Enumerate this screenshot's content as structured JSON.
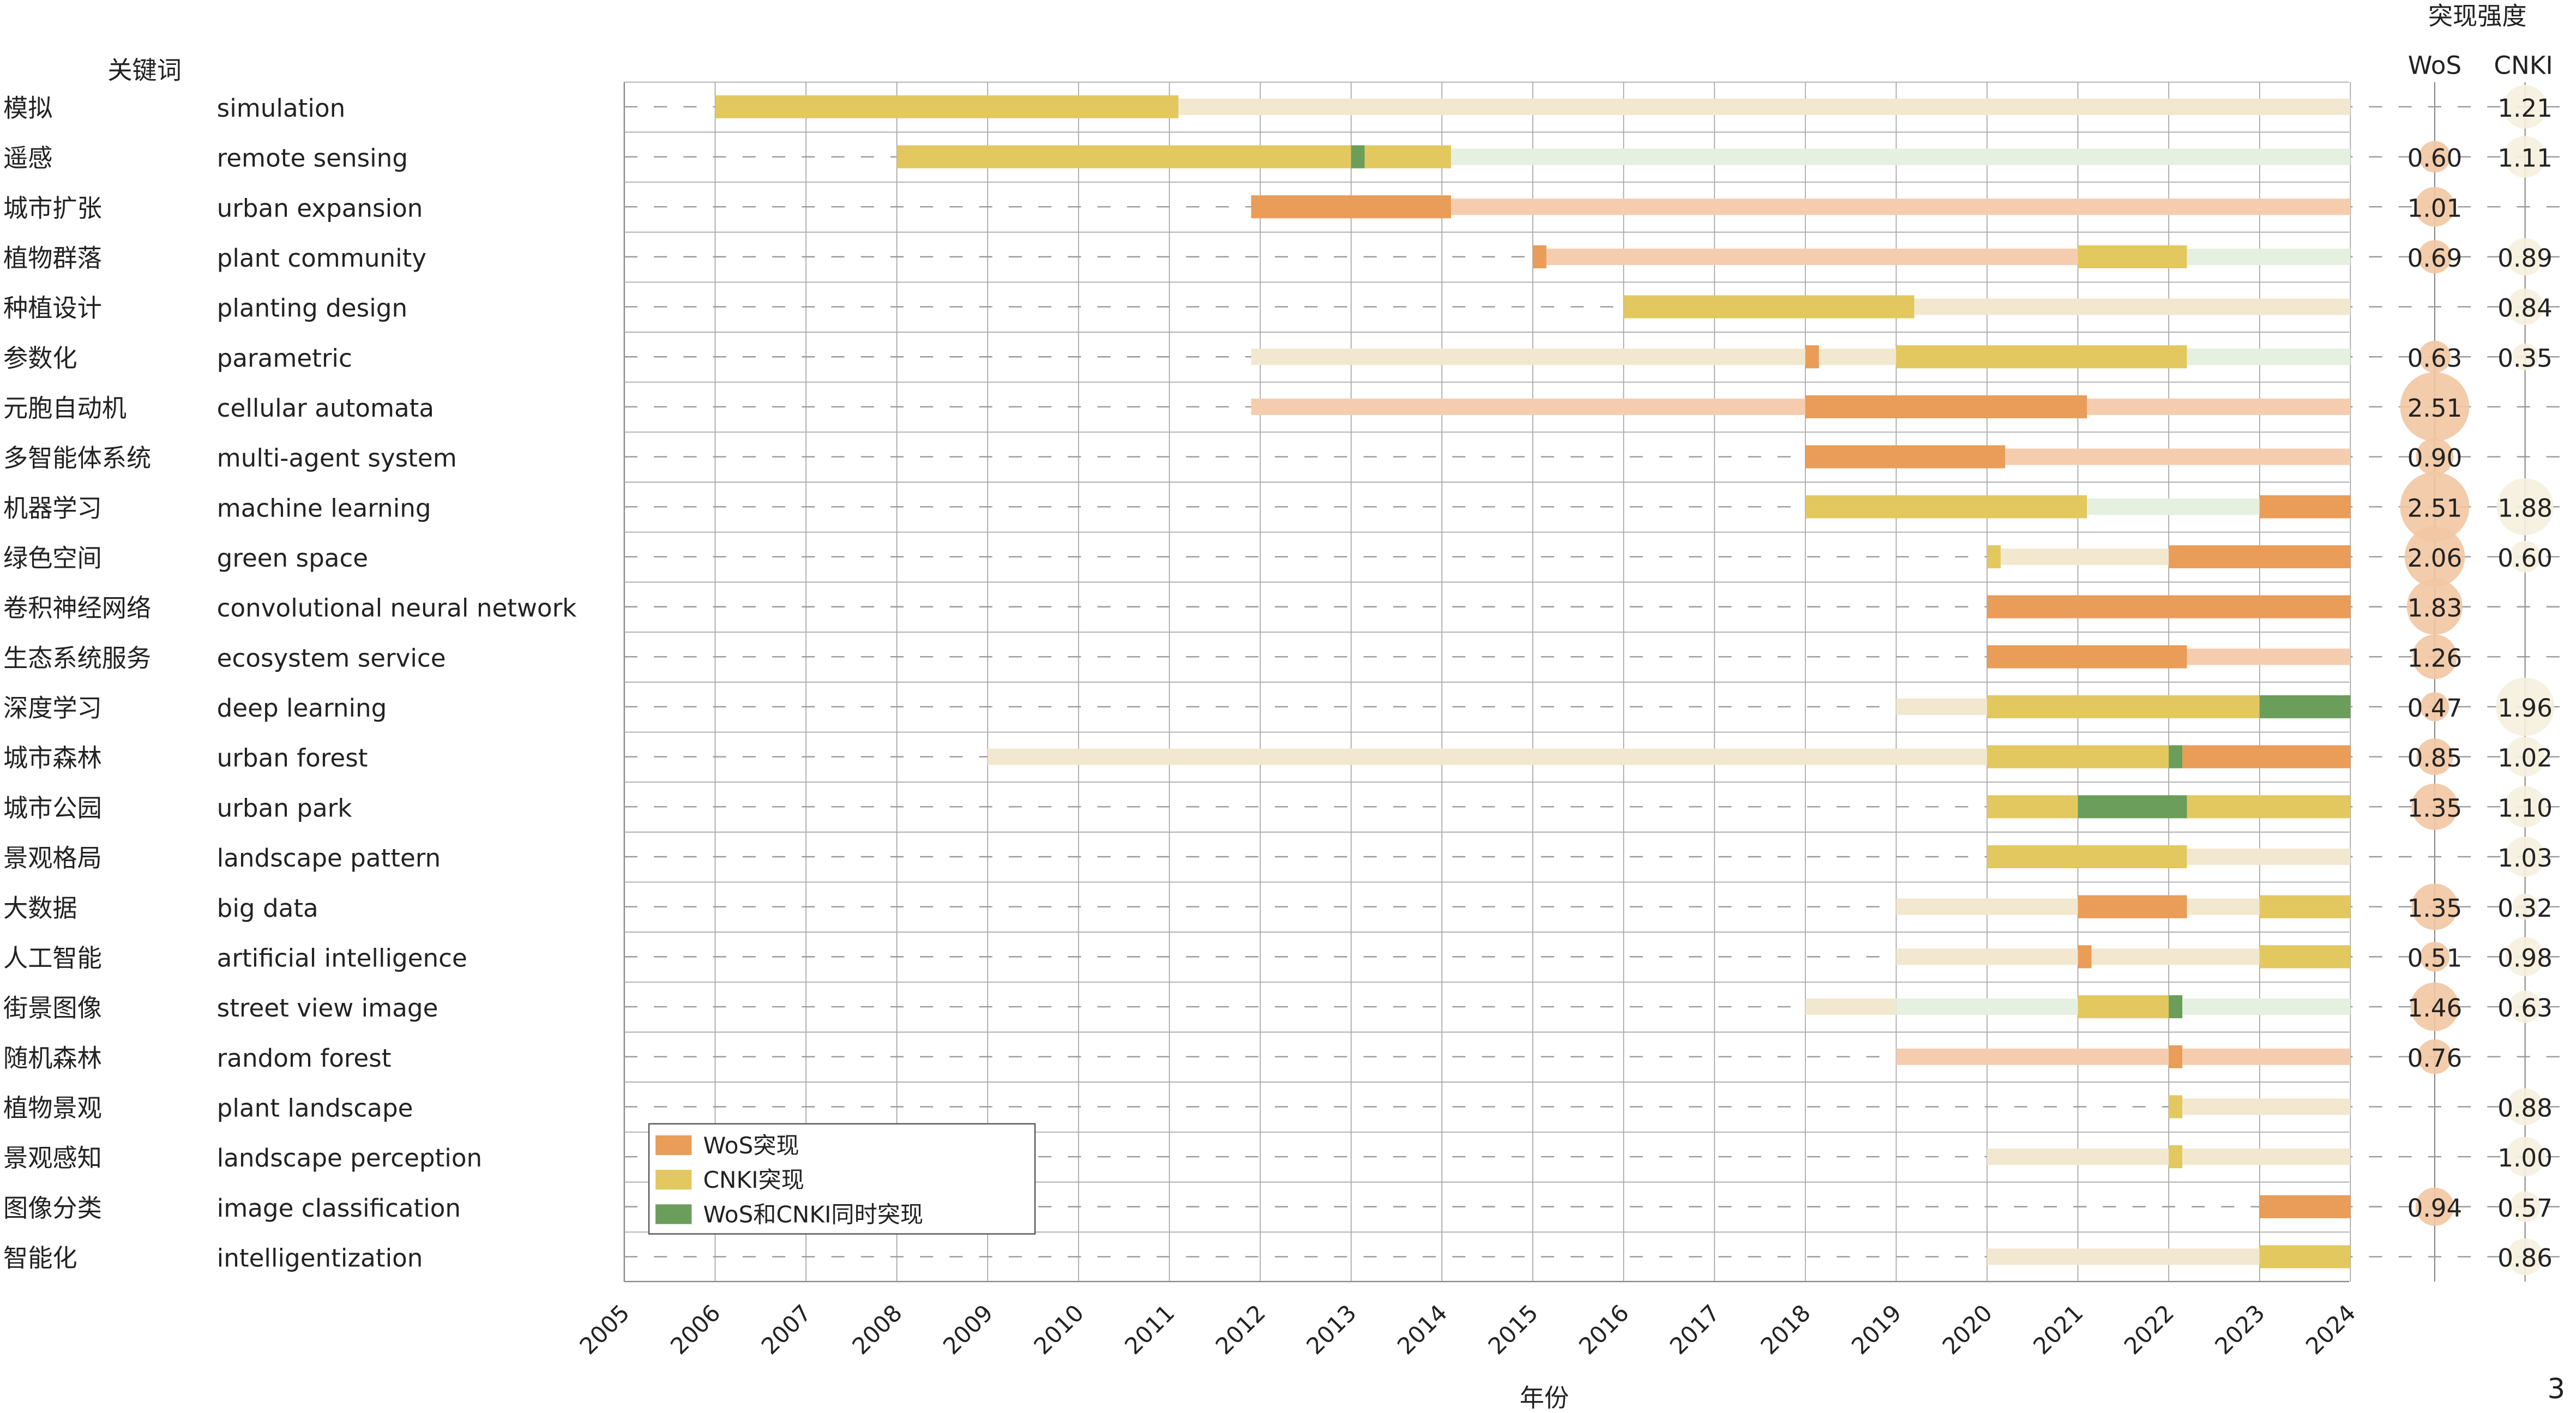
{
  "chart_data": {
    "type": "timeline-bar",
    "header_keyword": "关键词",
    "header_strength": "突现强度",
    "col_wos": "WoS",
    "col_cnki": "CNKI",
    "xlabel": "年份",
    "years": [
      2005,
      2006,
      2007,
      2008,
      2009,
      2010,
      2011,
      2012,
      2013,
      2014,
      2015,
      2016,
      2017,
      2018,
      2019,
      2020,
      2021,
      2022,
      2023,
      2024
    ],
    "xlim": [
      2005,
      2024
    ],
    "page_number": "3",
    "legend": [
      {
        "key": "wos",
        "label": "WoS突现"
      },
      {
        "key": "cnki",
        "label": "CNKI突现"
      },
      {
        "key": "both",
        "label": "WoS和CNKI同时突现"
      }
    ],
    "colors": {
      "wos": "#E99D58",
      "cnki": "#E3C85F",
      "both": "#6A9E5A",
      "wos_light": "#F5CDAE",
      "cnki_light": "#F2E8D0",
      "both_light": "#E5F0E0",
      "wos_bubble": "#F2C7A2",
      "cnki_bubble": "#F6F0DE"
    },
    "rows": [
      {
        "zh": "模拟",
        "en": "simulation",
        "wos": null,
        "cnki": "1.21",
        "seg": [
          [
            2006,
            2011.1,
            "cnki"
          ],
          [
            2011.1,
            2024,
            "cnki_light"
          ]
        ]
      },
      {
        "zh": "遥感",
        "en": "remote sensing",
        "wos": "0.60",
        "cnki": "1.11",
        "seg": [
          [
            2008,
            2013,
            "cnki"
          ],
          [
            2013,
            2013.15,
            "both"
          ],
          [
            2013.15,
            2014.1,
            "cnki"
          ],
          [
            2014.1,
            2024,
            "both_light"
          ]
        ]
      },
      {
        "zh": "城市扩张",
        "en": "urban expansion",
        "wos": "1.01",
        "cnki": null,
        "seg": [
          [
            2011.9,
            2014.1,
            "wos"
          ],
          [
            2014.1,
            2024,
            "wos_light"
          ]
        ]
      },
      {
        "zh": "植物群落",
        "en": "plant community",
        "wos": "0.69",
        "cnki": "0.89",
        "seg": [
          [
            2015,
            2015.15,
            "wos"
          ],
          [
            2015.15,
            2021,
            "wos_light"
          ],
          [
            2021,
            2022.2,
            "cnki"
          ],
          [
            2022.2,
            2024,
            "both_light"
          ]
        ]
      },
      {
        "zh": "种植设计",
        "en": "planting design",
        "wos": null,
        "cnki": "0.84",
        "seg": [
          [
            2016,
            2019.2,
            "cnki"
          ],
          [
            2019.2,
            2024,
            "cnki_light"
          ]
        ]
      },
      {
        "zh": "参数化",
        "en": "parametric",
        "wos": "0.63",
        "cnki": "0.35",
        "seg": [
          [
            2011.9,
            2018,
            "cnki_light"
          ],
          [
            2018,
            2018.15,
            "wos"
          ],
          [
            2018.15,
            2019,
            "cnki_light"
          ],
          [
            2019,
            2022.2,
            "cnki"
          ],
          [
            2022.2,
            2024,
            "both_light"
          ]
        ]
      },
      {
        "zh": "元胞自动机",
        "en": "cellular automata",
        "wos": "2.51",
        "cnki": null,
        "seg": [
          [
            2011.9,
            2018,
            "wos_light"
          ],
          [
            2018,
            2021.1,
            "wos"
          ],
          [
            2021.1,
            2024,
            "wos_light"
          ]
        ]
      },
      {
        "zh": "多智能体系统",
        "en": "multi-agent system",
        "wos": "0.90",
        "cnki": null,
        "seg": [
          [
            2018,
            2020.2,
            "wos"
          ],
          [
            2020.2,
            2024,
            "wos_light"
          ]
        ]
      },
      {
        "zh": "机器学习",
        "en": "machine learning",
        "wos": "2.51",
        "cnki": "1.88",
        "seg": [
          [
            2018,
            2021.1,
            "cnki"
          ],
          [
            2021.1,
            2023,
            "both_light"
          ],
          [
            2023,
            2024,
            "wos"
          ]
        ]
      },
      {
        "zh": "绿色空间",
        "en": "green space",
        "wos": "2.06",
        "cnki": "0.60",
        "seg": [
          [
            2020,
            2020.15,
            "cnki"
          ],
          [
            2020.15,
            2022,
            "cnki_light"
          ],
          [
            2022,
            2024,
            "wos"
          ]
        ]
      },
      {
        "zh": "卷积神经网络",
        "en": "convolutional neural network",
        "wos": "1.83",
        "cnki": null,
        "seg": [
          [
            2020,
            2024,
            "wos"
          ]
        ]
      },
      {
        "zh": "生态系统服务",
        "en": "ecosystem service",
        "wos": "1.26",
        "cnki": null,
        "seg": [
          [
            2020,
            2022.2,
            "wos"
          ],
          [
            2022.2,
            2024,
            "wos_light"
          ]
        ]
      },
      {
        "zh": "深度学习",
        "en": "deep learning",
        "wos": "0.47",
        "cnki": "1.96",
        "seg": [
          [
            2019,
            2020,
            "cnki_light"
          ],
          [
            2020,
            2023,
            "cnki"
          ],
          [
            2023,
            2024,
            "both"
          ]
        ]
      },
      {
        "zh": "城市森林",
        "en": "urban forest",
        "wos": "0.85",
        "cnki": "1.02",
        "seg": [
          [
            2009,
            2020,
            "cnki_light"
          ],
          [
            2020,
            2022,
            "cnki"
          ],
          [
            2022,
            2022.15,
            "both"
          ],
          [
            2022.15,
            2024,
            "wos"
          ]
        ]
      },
      {
        "zh": "城市公园",
        "en": "urban park",
        "wos": "1.35",
        "cnki": "1.10",
        "seg": [
          [
            2020,
            2021,
            "cnki"
          ],
          [
            2021,
            2022.2,
            "both"
          ],
          [
            2022.2,
            2024,
            "cnki"
          ]
        ]
      },
      {
        "zh": "景观格局",
        "en": "landscape pattern",
        "wos": null,
        "cnki": "1.03",
        "seg": [
          [
            2020,
            2022.2,
            "cnki"
          ],
          [
            2022.2,
            2024,
            "cnki_light"
          ]
        ]
      },
      {
        "zh": "大数据",
        "en": "big data",
        "wos": "1.35",
        "cnki": "0.32",
        "seg": [
          [
            2019,
            2021,
            "cnki_light"
          ],
          [
            2021,
            2022.2,
            "wos"
          ],
          [
            2022.2,
            2023,
            "cnki_light"
          ],
          [
            2023,
            2024,
            "cnki"
          ]
        ]
      },
      {
        "zh": "人工智能",
        "en": "artificial intelligence",
        "wos": "0.51",
        "cnki": "0.98",
        "seg": [
          [
            2019,
            2021,
            "cnki_light"
          ],
          [
            2021,
            2021.15,
            "wos"
          ],
          [
            2021.15,
            2023,
            "cnki_light"
          ],
          [
            2023,
            2024,
            "cnki"
          ]
        ]
      },
      {
        "zh": "街景图像",
        "en": "street view image",
        "wos": "1.46",
        "cnki": "0.63",
        "seg": [
          [
            2018,
            2019,
            "cnki_light"
          ],
          [
            2019,
            2021,
            "both_light"
          ],
          [
            2021,
            2022,
            "cnki"
          ],
          [
            2022,
            2022.15,
            "both"
          ],
          [
            2022.15,
            2024,
            "both_light"
          ]
        ]
      },
      {
        "zh": "随机森林",
        "en": "random forest",
        "wos": "0.76",
        "cnki": null,
        "seg": [
          [
            2019,
            2022,
            "wos_light"
          ],
          [
            2022,
            2022.15,
            "wos"
          ],
          [
            2022.15,
            2024,
            "wos_light"
          ]
        ]
      },
      {
        "zh": "植物景观",
        "en": "plant landscape",
        "wos": null,
        "cnki": "0.88",
        "seg": [
          [
            2022,
            2022.15,
            "cnki"
          ],
          [
            2022.15,
            2024,
            "cnki_light"
          ]
        ]
      },
      {
        "zh": "景观感知",
        "en": "landscape perception",
        "wos": null,
        "cnki": "1.00",
        "seg": [
          [
            2020,
            2022,
            "cnki_light"
          ],
          [
            2022,
            2022.15,
            "cnki"
          ],
          [
            2022.15,
            2024,
            "cnki_light"
          ]
        ]
      },
      {
        "zh": "图像分类",
        "en": "image classification",
        "wos": "0.94",
        "cnki": "0.57",
        "seg": [
          [
            2023,
            2024,
            "wos"
          ]
        ]
      },
      {
        "zh": "智能化",
        "en": "intelligentization",
        "wos": null,
        "cnki": "0.86",
        "seg": [
          [
            2020,
            2023,
            "cnki_light"
          ],
          [
            2023,
            2024,
            "cnki"
          ]
        ]
      }
    ]
  }
}
